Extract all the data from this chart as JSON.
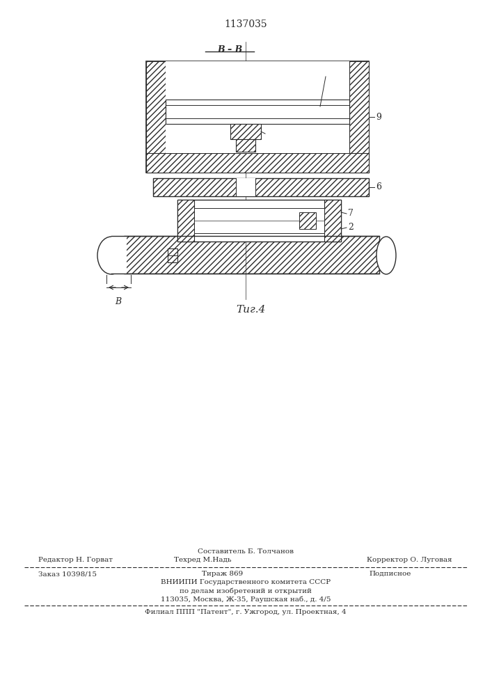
{
  "patent_number": "1137035",
  "line_color": "#2a2a2a",
  "footer": {
    "composer": "Составитель Б. Толчанов",
    "editor": "Редактор Н. Горват",
    "techred": "Техред М.Надь",
    "corrector": "Корректор О. Луговая",
    "order": "Заказ 10398/15",
    "circulation": "Тираж 869",
    "signed": "Подписное",
    "org_line1": "ВНИИПИ Государственного комитета СССР",
    "org_line2": "по делам изобретений и открытий",
    "org_line3": "113035, Москва, Ж-35, Раушская наб., д. 4/5",
    "branch": "Филиал ППП \"Патент\", г. Ужгород, ул. Проектная, 4"
  }
}
